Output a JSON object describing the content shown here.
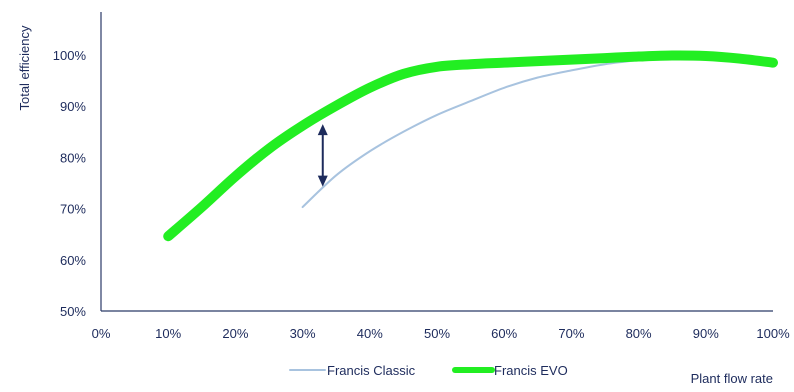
{
  "chart_data": {
    "type": "line",
    "xlabel": "Plant flow rate",
    "ylabel": "Total efficiency",
    "xlim": [
      0,
      100
    ],
    "ylim": [
      50,
      100
    ],
    "x_ticks": [
      "0%",
      "10%",
      "20%",
      "30%",
      "40%",
      "50%",
      "60%",
      "70%",
      "80%",
      "90%",
      "100%"
    ],
    "y_ticks": [
      "50%",
      "60%",
      "70%",
      "80%",
      "90%",
      "100%"
    ],
    "x_tick_values": [
      0,
      10,
      20,
      30,
      40,
      50,
      60,
      70,
      80,
      90,
      100
    ],
    "y_tick_values": [
      50,
      60,
      70,
      80,
      90,
      100
    ],
    "grid": false,
    "legend_position": "bottom",
    "series": [
      {
        "name": "Francis Classic",
        "color": "#a8c3df",
        "x": [
          30,
          35,
          40,
          45,
          50,
          55,
          60,
          65,
          70,
          75,
          80,
          85,
          90,
          95,
          100
        ],
        "y": [
          70.3,
          76.5,
          81.2,
          85.0,
          88.3,
          91.0,
          93.6,
          95.6,
          97.0,
          98.2,
          99.0,
          99.6,
          99.9,
          99.3,
          98.0
        ]
      },
      {
        "name": "Francis EVO",
        "color": "#22ee22",
        "x": [
          10,
          15,
          20,
          25,
          30,
          35,
          40,
          45,
          50,
          55,
          60,
          65,
          70,
          75,
          80,
          85,
          90,
          95,
          100
        ],
        "y": [
          64.6,
          70.3,
          76.3,
          81.7,
          86.2,
          90.1,
          93.6,
          96.3,
          97.7,
          98.2,
          98.5,
          98.8,
          99.1,
          99.4,
          99.7,
          99.9,
          99.8,
          99.3,
          98.5
        ]
      }
    ],
    "annotation": {
      "type": "double-arrow",
      "color": "#1d2b5c",
      "x": 33,
      "y_from": 74.3,
      "y_to": 86.5
    }
  }
}
